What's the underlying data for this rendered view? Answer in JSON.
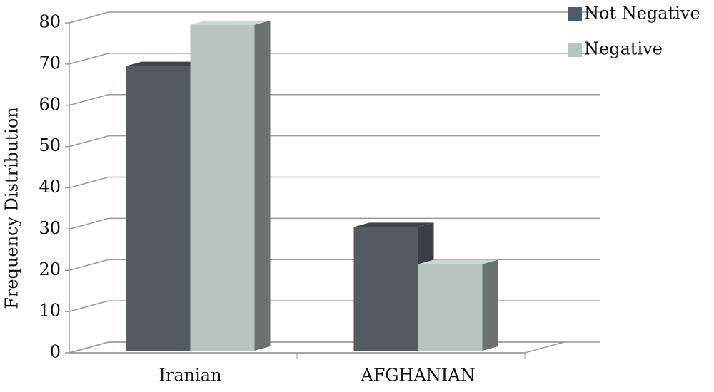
{
  "chart_data": {
    "type": "bar3d",
    "y_label": "Frequency Distribution",
    "categories": [
      "Iranian",
      "AFGHANIAN"
    ],
    "series": [
      {
        "name": "Not Negative",
        "color": "#525c60",
        "values": [
          69,
          30
        ]
      },
      {
        "name": "Negative",
        "color": "#b8c4c2",
        "values": [
          79,
          21
        ]
      }
    ],
    "ylim": [
      0,
      80
    ],
    "yticks": [
      0,
      10,
      20,
      30,
      40,
      50,
      60,
      70,
      80
    ],
    "grid": true,
    "legend": "top-right"
  }
}
